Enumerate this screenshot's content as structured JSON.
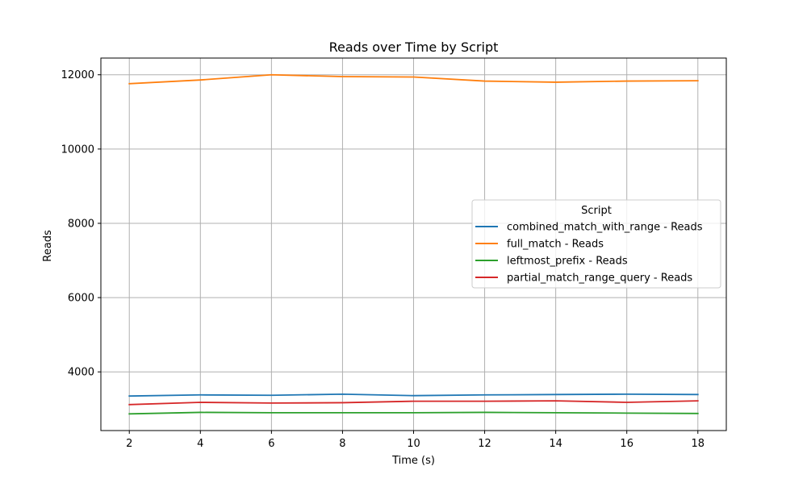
{
  "chart_data": {
    "type": "line",
    "title": "Reads over Time by Script",
    "xlabel": "Time (s)",
    "ylabel": "Reads",
    "x": [
      2,
      4,
      6,
      8,
      10,
      12,
      14,
      16,
      18
    ],
    "xticks": [
      2,
      4,
      6,
      8,
      10,
      12,
      14,
      16,
      18
    ],
    "yticks": [
      4000,
      6000,
      8000,
      10000,
      12000
    ],
    "xlim": [
      1.2,
      18.8
    ],
    "ylim": [
      2420,
      12450
    ],
    "grid": true,
    "legend": {
      "title": "Script",
      "placement": "center-right"
    },
    "series": [
      {
        "name": "combined_match_with_range - Reads",
        "color": "#1f77b4",
        "values": [
          3350,
          3380,
          3370,
          3400,
          3360,
          3380,
          3390,
          3400,
          3390
        ]
      },
      {
        "name": "full_match - Reads",
        "color": "#ff7f0e",
        "values": [
          11760,
          11860,
          12000,
          11950,
          11940,
          11830,
          11800,
          11830,
          11840
        ]
      },
      {
        "name": "leftmost_prefix - Reads",
        "color": "#2ca02c",
        "values": [
          2870,
          2910,
          2900,
          2900,
          2900,
          2910,
          2900,
          2890,
          2880
        ]
      },
      {
        "name": "partial_match_range_query - Reads",
        "color": "#d62728",
        "values": [
          3120,
          3180,
          3160,
          3170,
          3210,
          3210,
          3220,
          3180,
          3220
        ]
      }
    ]
  }
}
